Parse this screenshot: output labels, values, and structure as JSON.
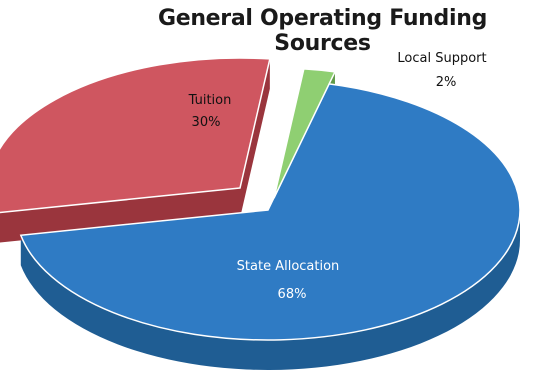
{
  "chart_data": {
    "type": "pie",
    "title": "General Operating Funding Sources",
    "slices": [
      {
        "name": "State Allocation",
        "value": 68,
        "label": "68%",
        "color": "#2f7bc4",
        "side_color": "#1f5d93"
      },
      {
        "name": "Tuition",
        "value": 30,
        "label": "30%",
        "color": "#cf5660",
        "side_color": "#9a353d"
      },
      {
        "name": "Local Support",
        "value": 2,
        "label": "2%",
        "color": "#8fcf72",
        "side_color": "#5f9a48"
      }
    ],
    "style": "3d-exploded"
  }
}
